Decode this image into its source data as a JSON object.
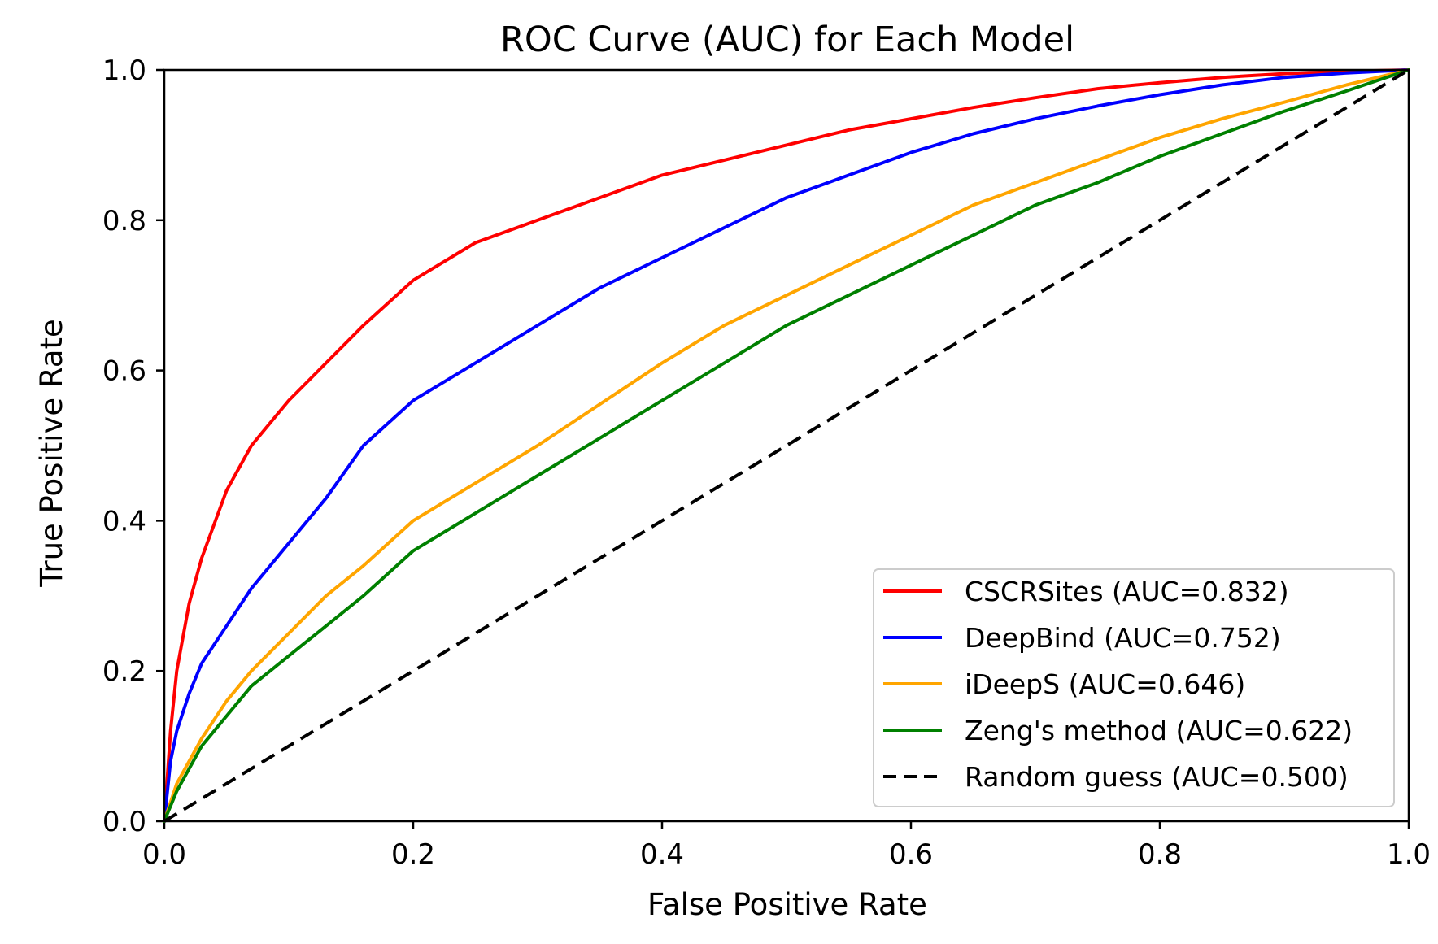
{
  "chart_data": {
    "type": "line",
    "title": "ROC Curve (AUC) for Each Model",
    "xlabel": "False Positive Rate",
    "ylabel": "True Positive Rate",
    "xlim": [
      0.0,
      1.0
    ],
    "ylim": [
      0.0,
      1.0
    ],
    "xticks": [
      "0.0",
      "0.2",
      "0.4",
      "0.6",
      "0.8",
      "1.0"
    ],
    "yticks": [
      "0.0",
      "0.2",
      "0.4",
      "0.6",
      "0.8",
      "1.0"
    ],
    "grid": false,
    "legend_position": "lower-right",
    "series": [
      {
        "name": "CSCRSites (AUC=0.832)",
        "color": "#ff0000",
        "dash": "solid",
        "x": [
          0,
          0.005,
          0.01,
          0.02,
          0.03,
          0.05,
          0.07,
          0.1,
          0.13,
          0.16,
          0.2,
          0.25,
          0.3,
          0.35,
          0.4,
          0.45,
          0.5,
          0.55,
          0.6,
          0.65,
          0.7,
          0.75,
          0.8,
          0.85,
          0.9,
          0.95,
          1.0
        ],
        "y": [
          0,
          0.12,
          0.2,
          0.29,
          0.35,
          0.44,
          0.5,
          0.56,
          0.61,
          0.66,
          0.72,
          0.77,
          0.8,
          0.83,
          0.86,
          0.88,
          0.9,
          0.92,
          0.935,
          0.95,
          0.963,
          0.975,
          0.983,
          0.99,
          0.995,
          0.998,
          1.0
        ]
      },
      {
        "name": "DeepBind (AUC=0.752)",
        "color": "#0000ff",
        "dash": "solid",
        "x": [
          0,
          0.005,
          0.01,
          0.02,
          0.03,
          0.05,
          0.07,
          0.1,
          0.13,
          0.16,
          0.2,
          0.25,
          0.3,
          0.35,
          0.4,
          0.45,
          0.5,
          0.55,
          0.6,
          0.65,
          0.7,
          0.75,
          0.8,
          0.85,
          0.9,
          0.95,
          1.0
        ],
        "y": [
          0,
          0.08,
          0.12,
          0.17,
          0.21,
          0.26,
          0.31,
          0.37,
          0.43,
          0.5,
          0.56,
          0.61,
          0.66,
          0.71,
          0.75,
          0.79,
          0.83,
          0.86,
          0.89,
          0.915,
          0.935,
          0.952,
          0.967,
          0.98,
          0.99,
          0.996,
          1.0
        ]
      },
      {
        "name": "iDeepS (AUC=0.646)",
        "color": "#ffa500",
        "dash": "solid",
        "x": [
          0,
          0.01,
          0.02,
          0.03,
          0.05,
          0.07,
          0.1,
          0.13,
          0.16,
          0.2,
          0.25,
          0.3,
          0.35,
          0.4,
          0.45,
          0.5,
          0.55,
          0.6,
          0.65,
          0.7,
          0.75,
          0.8,
          0.85,
          0.9,
          0.95,
          1.0
        ],
        "y": [
          0,
          0.05,
          0.08,
          0.11,
          0.16,
          0.2,
          0.25,
          0.3,
          0.34,
          0.4,
          0.45,
          0.5,
          0.555,
          0.61,
          0.66,
          0.7,
          0.74,
          0.78,
          0.82,
          0.85,
          0.88,
          0.91,
          0.935,
          0.957,
          0.98,
          1.0
        ]
      },
      {
        "name": "Zeng's method (AUC=0.622)",
        "color": "#008000",
        "dash": "solid",
        "x": [
          0,
          0.01,
          0.02,
          0.03,
          0.05,
          0.07,
          0.1,
          0.13,
          0.16,
          0.2,
          0.25,
          0.3,
          0.35,
          0.4,
          0.45,
          0.5,
          0.55,
          0.6,
          0.65,
          0.7,
          0.75,
          0.8,
          0.85,
          0.9,
          0.95,
          1.0
        ],
        "y": [
          0,
          0.04,
          0.07,
          0.1,
          0.14,
          0.18,
          0.22,
          0.26,
          0.3,
          0.36,
          0.41,
          0.46,
          0.51,
          0.56,
          0.61,
          0.66,
          0.7,
          0.74,
          0.78,
          0.82,
          0.85,
          0.885,
          0.915,
          0.945,
          0.972,
          1.0
        ]
      },
      {
        "name": "Random guess (AUC=0.500)",
        "color": "#000000",
        "dash": "dashed",
        "x": [
          0,
          1.0
        ],
        "y": [
          0,
          1.0
        ]
      }
    ]
  }
}
